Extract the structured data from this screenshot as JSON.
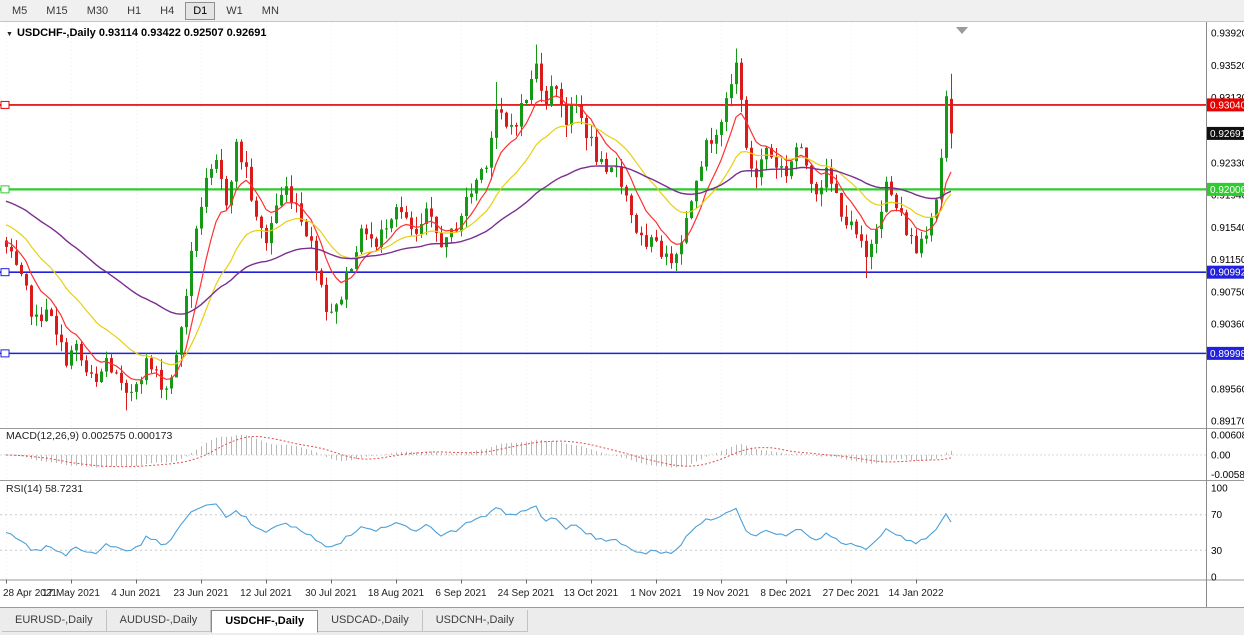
{
  "icons": {
    "dropdown_arrow": "▼",
    "shift_marker": "▼"
  },
  "toolbar": {
    "periods": [
      "M5",
      "M15",
      "M30",
      "H1",
      "H4",
      "D1",
      "W1",
      "MN"
    ],
    "active_period": "D1"
  },
  "chart": {
    "title_line": "USDCHF-,Daily 0.93114 0.93422 0.92507 0.92691",
    "symbol": "USDCHF-,Daily",
    "y_axis": {
      "ticks": [
        0.9392,
        0.9352,
        0.9313,
        0.9233,
        0.9194,
        0.9154,
        0.9115,
        0.9075,
        0.9036,
        0.8956,
        0.8917
      ],
      "badges": [
        {
          "text": "0.93040",
          "value": 0.9304,
          "color": "#e60000"
        },
        {
          "text": "0.92691",
          "value": 0.92691,
          "color": "#111111"
        },
        {
          "text": "0.92006",
          "value": 0.92006,
          "color": "#2ecc2e"
        },
        {
          "text": "0.90992",
          "value": 0.90992,
          "color": "#2020dd"
        },
        {
          "text": "0.89998",
          "value": 0.89998,
          "color": "#2020dd"
        }
      ]
    },
    "hlines": [
      {
        "value": 0.9304,
        "color": "#e60000",
        "width": 1.6,
        "name": "resistance-line"
      },
      {
        "value": 0.92006,
        "color": "#2ecc2e",
        "width": 2.2,
        "name": "support-line-green"
      },
      {
        "value": 0.90992,
        "color": "#2020dd",
        "width": 1.6,
        "name": "support-line-blue-1"
      },
      {
        "value": 0.89998,
        "color": "#2020dd",
        "width": 1.6,
        "name": "support-line-blue-2"
      }
    ],
    "x_axis": {
      "labels": [
        "28 Apr 2021",
        "17 May 2021",
        "4 Jun 2021",
        "23 Jun 2021",
        "12 Jul 2021",
        "30 Jul 2021",
        "18 Aug 2021",
        "6 Sep 2021",
        "24 Sep 2021",
        "13 Oct 2021",
        "1 Nov 2021",
        "19 Nov 2021",
        "8 Dec 2021",
        "27 Dec 2021",
        "14 Jan 2022"
      ],
      "tick_indices": [
        0,
        13,
        26,
        39,
        52,
        65,
        78,
        91,
        104,
        117,
        130,
        143,
        156,
        169,
        182
      ]
    },
    "macd_pane": {
      "label": "MACD(12,26,9) 0.002575 0.000173",
      "axis_labels": [
        {
          "text": "0.00608",
          "value": 0.00608
        },
        {
          "text": "0.00",
          "value": 0
        },
        {
          "text": "-0.00586",
          "value": -0.00586
        }
      ]
    },
    "rsi_pane": {
      "label": "RSI(14) 58.7231",
      "axis_labels": [
        {
          "text": "100",
          "value": 100
        },
        {
          "text": "70",
          "value": 70
        },
        {
          "text": "30",
          "value": 30
        },
        {
          "text": "0",
          "value": 0
        }
      ],
      "levels": [
        70,
        30
      ]
    }
  },
  "chart_data": {
    "type": "candlestick",
    "symbol": "USDCHF",
    "timeframe": "Daily",
    "title": "USDCHF-,Daily",
    "last_candle": {
      "open": 0.93114,
      "high": 0.93422,
      "low": 0.92507,
      "close": 0.92691
    },
    "visible_price_range": [
      0.8917,
      0.9392
    ],
    "horizontal_levels": [
      0.9304,
      0.92006,
      0.90992,
      0.89998
    ],
    "current_price": 0.92691,
    "candle_count": 190,
    "close_anchors": [
      [
        0,
        0.9128
      ],
      [
        2,
        0.91
      ],
      [
        4,
        0.9072
      ],
      [
        6,
        0.9038
      ],
      [
        8,
        0.906
      ],
      [
        10,
        0.9018
      ],
      [
        12,
        0.8995
      ],
      [
        14,
        0.9005
      ],
      [
        16,
        0.8975
      ],
      [
        18,
        0.896
      ],
      [
        20,
        0.8992
      ],
      [
        22,
        0.897
      ],
      [
        24,
        0.8942
      ],
      [
        26,
        0.8968
      ],
      [
        28,
        0.8988
      ],
      [
        30,
        0.8972
      ],
      [
        32,
        0.8958
      ],
      [
        34,
        0.8992
      ],
      [
        36,
        0.9075
      ],
      [
        38,
        0.9158
      ],
      [
        40,
        0.9205
      ],
      [
        42,
        0.9228
      ],
      [
        44,
        0.9188
      ],
      [
        46,
        0.9252
      ],
      [
        48,
        0.9225
      ],
      [
        50,
        0.916
      ],
      [
        52,
        0.9138
      ],
      [
        54,
        0.9182
      ],
      [
        56,
        0.9202
      ],
      [
        58,
        0.9185
      ],
      [
        60,
        0.9152
      ],
      [
        62,
        0.9112
      ],
      [
        64,
        0.9058
      ],
      [
        66,
        0.9052
      ],
      [
        68,
        0.9095
      ],
      [
        70,
        0.9132
      ],
      [
        72,
        0.9152
      ],
      [
        74,
        0.9128
      ],
      [
        76,
        0.9162
      ],
      [
        78,
        0.9185
      ],
      [
        80,
        0.9158
      ],
      [
        82,
        0.914
      ],
      [
        84,
        0.9168
      ],
      [
        86,
        0.9146
      ],
      [
        88,
        0.9132
      ],
      [
        90,
        0.9158
      ],
      [
        92,
        0.9185
      ],
      [
        94,
        0.9212
      ],
      [
        96,
        0.9238
      ],
      [
        98,
        0.9298
      ],
      [
        100,
        0.9272
      ],
      [
        102,
        0.9288
      ],
      [
        104,
        0.9312
      ],
      [
        106,
        0.9352
      ],
      [
        108,
        0.9312
      ],
      [
        110,
        0.933
      ],
      [
        112,
        0.9285
      ],
      [
        114,
        0.9302
      ],
      [
        116,
        0.9272
      ],
      [
        118,
        0.9242
      ],
      [
        120,
        0.9212
      ],
      [
        122,
        0.9232
      ],
      [
        124,
        0.9192
      ],
      [
        126,
        0.9152
      ],
      [
        128,
        0.9122
      ],
      [
        130,
        0.9142
      ],
      [
        132,
        0.9112
      ],
      [
        134,
        0.9128
      ],
      [
        136,
        0.9162
      ],
      [
        138,
        0.9222
      ],
      [
        140,
        0.9252
      ],
      [
        142,
        0.9278
      ],
      [
        144,
        0.9302
      ],
      [
        146,
        0.9352
      ],
      [
        147,
        0.9318
      ],
      [
        148,
        0.9242
      ],
      [
        150,
        0.9218
      ],
      [
        152,
        0.9252
      ],
      [
        154,
        0.9232
      ],
      [
        156,
        0.9222
      ],
      [
        158,
        0.9252
      ],
      [
        160,
        0.9232
      ],
      [
        162,
        0.9202
      ],
      [
        164,
        0.9218
      ],
      [
        166,
        0.9192
      ],
      [
        168,
        0.9162
      ],
      [
        170,
        0.9142
      ],
      [
        172,
        0.9115
      ],
      [
        174,
        0.9162
      ],
      [
        176,
        0.9205
      ],
      [
        178,
        0.9178
      ],
      [
        180,
        0.9152
      ],
      [
        182,
        0.9126
      ],
      [
        184,
        0.9155
      ],
      [
        186,
        0.9192
      ],
      [
        187,
        0.9242
      ],
      [
        188,
        0.9311
      ],
      [
        189,
        0.92691
      ]
    ],
    "wick_overrides": [
      {
        "i": 24,
        "low": 0.893
      },
      {
        "i": 64,
        "low": 0.904
      },
      {
        "i": 98,
        "high": 0.9332
      },
      {
        "i": 106,
        "high": 0.9378
      },
      {
        "i": 146,
        "high": 0.9373
      },
      {
        "i": 172,
        "low": 0.9092
      }
    ],
    "indicators": {
      "moving_averages": [
        {
          "type": "ema",
          "period": 8,
          "color": "#ff3030",
          "name": "ma-fast"
        },
        {
          "type": "ema",
          "period": 21,
          "color": "#e8cf10",
          "name": "ma-mid"
        },
        {
          "type": "ema",
          "period": 55,
          "color": "#7a2f8f",
          "name": "ma-slow"
        }
      ],
      "macd": {
        "fast": 12,
        "slow": 26,
        "signal": 9,
        "value": 0.002575,
        "signal_value": 0.000173,
        "axis_range": [
          -0.00586,
          0.00608
        ]
      },
      "rsi": {
        "period": 14,
        "value": 58.7231,
        "axis_range": [
          0,
          100
        ],
        "levels": [
          70,
          30
        ]
      }
    },
    "x_tick_labels": [
      "28 Apr 2021",
      "17 May 2021",
      "4 Jun 2021",
      "23 Jun 2021",
      "12 Jul 2021",
      "30 Jul 2021",
      "18 Aug 2021",
      "6 Sep 2021",
      "24 Sep 2021",
      "13 Oct 2021",
      "1 Nov 2021",
      "19 Nov 2021",
      "8 Dec 2021",
      "27 Dec 2021",
      "14 Jan 2022"
    ]
  },
  "colors": {
    "bull": "#159a15",
    "bear": "#dd1a1a",
    "macd_hist": "#b8b8b8",
    "macd_signal": "#e05050",
    "rsi_line": "#4aa0d8",
    "separator": "#9a9a9a",
    "grid": "#ededed"
  },
  "tabs": [
    {
      "label": "EURUSD-,Daily",
      "active": false
    },
    {
      "label": "AUDUSD-,Daily",
      "active": false
    },
    {
      "label": "USDCHF-,Daily",
      "active": true
    },
    {
      "label": "USDCAD-,Daily",
      "active": false
    },
    {
      "label": "USDCNH-,Daily",
      "active": false
    }
  ]
}
